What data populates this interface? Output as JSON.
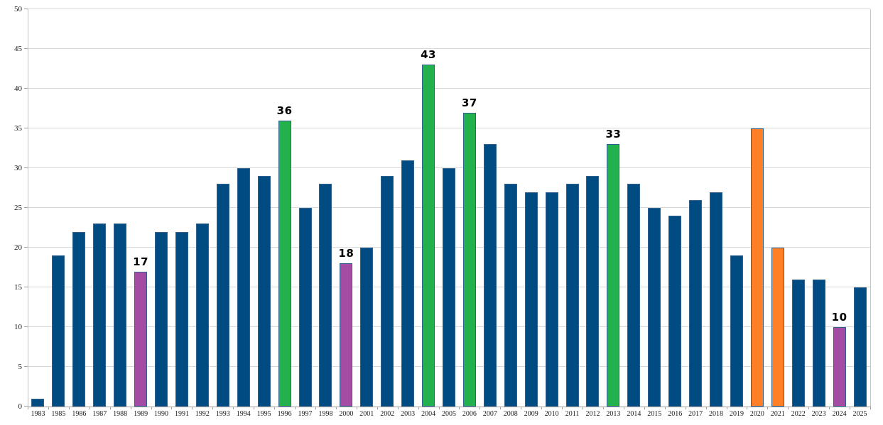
{
  "chart_data": {
    "type": "bar",
    "title": "",
    "xlabel": "",
    "ylabel": "",
    "ylim": [
      0,
      50
    ],
    "ytick_step": 5,
    "grid": true,
    "legend": "none",
    "categories": [
      "1983",
      "1985",
      "1986",
      "1987",
      "1988",
      "1989",
      "1990",
      "1991",
      "1992",
      "1993",
      "1994",
      "1995",
      "1996",
      "1997",
      "1998",
      "2000",
      "2001",
      "2002",
      "2003",
      "2004",
      "2005",
      "2006",
      "2007",
      "2008",
      "2009",
      "2010",
      "2011",
      "2012",
      "2013",
      "2014",
      "2015",
      "2016",
      "2017",
      "2018",
      "2019",
      "2020",
      "2021",
      "2022",
      "2023",
      "2024",
      "2025"
    ],
    "values": [
      1,
      19,
      22,
      23,
      23,
      17,
      22,
      22,
      23,
      28,
      30,
      29,
      36,
      25,
      28,
      18,
      20,
      29,
      31,
      43,
      30,
      37,
      33,
      28,
      27,
      27,
      28,
      29,
      33,
      28,
      25,
      24,
      26,
      27,
      19,
      35,
      20,
      16,
      16,
      10,
      15
    ],
    "bar_colors": [
      "blue",
      "blue",
      "blue",
      "blue",
      "blue",
      "purple",
      "blue",
      "blue",
      "blue",
      "blue",
      "blue",
      "blue",
      "green",
      "blue",
      "blue",
      "purple",
      "blue",
      "blue",
      "blue",
      "green",
      "blue",
      "green",
      "blue",
      "blue",
      "blue",
      "blue",
      "blue",
      "blue",
      "green",
      "blue",
      "blue",
      "blue",
      "blue",
      "blue",
      "blue",
      "orange",
      "orange",
      "blue",
      "blue",
      "purple",
      "blue"
    ],
    "data_labels": [
      null,
      null,
      null,
      null,
      null,
      17,
      null,
      null,
      null,
      null,
      null,
      null,
      36,
      null,
      null,
      18,
      null,
      null,
      null,
      43,
      null,
      37,
      null,
      null,
      null,
      null,
      null,
      null,
      33,
      null,
      null,
      null,
      null,
      null,
      null,
      null,
      null,
      null,
      null,
      10,
      null
    ],
    "palette": {
      "blue": "#004B82",
      "green": "#22B14C",
      "purple": "#A44CA4",
      "orange": "#FF7F27",
      "bar_border": "#31618F"
    },
    "axis_style": {
      "grid_color": "#D9D9D9",
      "axis_color": "#9E9E9E",
      "label_color": "#1A1A1A"
    }
  }
}
